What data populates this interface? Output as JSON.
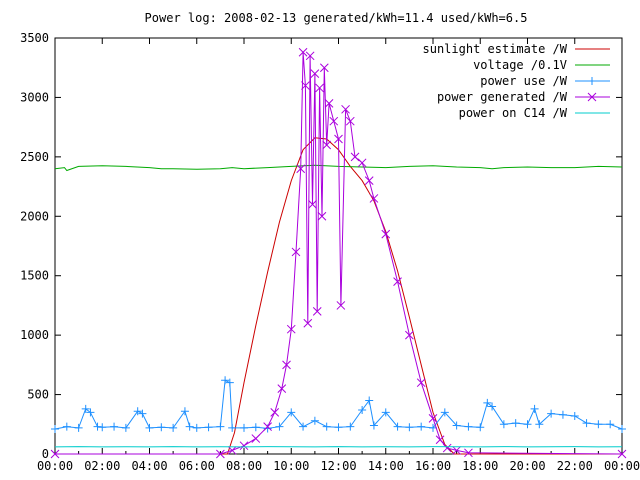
{
  "chart_data": {
    "type": "line",
    "title": "Power log: 2008-02-13 generated/kWh=11.4 used/kWh=6.5",
    "xlabel": "",
    "ylabel": "",
    "x_ticks": [
      "00:00",
      "02:00",
      "04:00",
      "06:00",
      "08:00",
      "10:00",
      "12:00",
      "14:00",
      "16:00",
      "18:00",
      "20:00",
      "22:00",
      "00:00"
    ],
    "y_ticks": [
      "0",
      "500",
      "1000",
      "1500",
      "2000",
      "2500",
      "3000",
      "3500"
    ],
    "xlim_hours": [
      0,
      24
    ],
    "ylim": [
      0,
      3500
    ],
    "grid": false,
    "legend_position": "top-right",
    "series": [
      {
        "name": "sunlight estimate /W",
        "color": "#cc0000",
        "marker": "none",
        "x_hours": [
          0,
          7.3,
          7.6,
          8.0,
          8.5,
          9.0,
          9.5,
          10.0,
          10.5,
          11.0,
          11.5,
          12.0,
          12.5,
          13.0,
          13.5,
          14.0,
          14.5,
          15.0,
          15.5,
          16.0,
          16.5,
          16.9,
          24
        ],
        "values": [
          0,
          0,
          180,
          600,
          1080,
          1530,
          1950,
          2300,
          2560,
          2660,
          2650,
          2560,
          2420,
          2300,
          2130,
          1870,
          1540,
          1150,
          750,
          350,
          80,
          0,
          0
        ]
      },
      {
        "name": "voltage /0.1V",
        "color": "#00aa00",
        "marker": "none",
        "x_hours": [
          0,
          0.4,
          0.5,
          1,
          2,
          3,
          4,
          4.5,
          5,
          6,
          7,
          7.5,
          8,
          9,
          10,
          11,
          12,
          13,
          14,
          15,
          16,
          17,
          18,
          18.5,
          19,
          20,
          21,
          22,
          23,
          24
        ],
        "values": [
          2400,
          2410,
          2385,
          2420,
          2425,
          2420,
          2410,
          2400,
          2400,
          2395,
          2400,
          2410,
          2400,
          2410,
          2420,
          2430,
          2420,
          2415,
          2410,
          2420,
          2425,
          2415,
          2410,
          2400,
          2410,
          2415,
          2410,
          2410,
          2420,
          2415
        ]
      },
      {
        "name": "power use /W",
        "color": "#1e90ff",
        "marker": "plus",
        "x_hours": [
          0.0,
          0.5,
          1.0,
          1.3,
          1.5,
          1.8,
          2.0,
          2.5,
          3.0,
          3.5,
          3.7,
          4.0,
          4.5,
          5.0,
          5.5,
          5.7,
          6.0,
          6.5,
          7.0,
          7.2,
          7.4,
          7.5,
          8.0,
          8.5,
          9.0,
          9.5,
          10.0,
          10.5,
          11.0,
          11.5,
          12.0,
          12.5,
          13.0,
          13.3,
          13.5,
          14.0,
          14.5,
          15.0,
          15.5,
          16.0,
          16.5,
          17.0,
          17.5,
          18.0,
          18.3,
          18.5,
          19.0,
          19.5,
          20.0,
          20.3,
          20.5,
          21.0,
          21.5,
          22.0,
          22.5,
          23.0,
          23.5,
          24.0
        ],
        "values": [
          210,
          230,
          220,
          380,
          350,
          230,
          225,
          230,
          220,
          360,
          340,
          220,
          225,
          220,
          360,
          230,
          220,
          225,
          230,
          620,
          600,
          220,
          220,
          225,
          215,
          230,
          350,
          230,
          280,
          230,
          225,
          230,
          370,
          450,
          240,
          350,
          230,
          225,
          230,
          220,
          350,
          240,
          230,
          225,
          430,
          400,
          250,
          260,
          250,
          380,
          250,
          340,
          330,
          320,
          260,
          250,
          250,
          210
        ]
      },
      {
        "name": "power generated /W",
        "color": "#aa00dd",
        "marker": "x",
        "x_hours": [
          0,
          7.0,
          7.5,
          8.0,
          8.5,
          9.0,
          9.3,
          9.6,
          9.8,
          10.0,
          10.2,
          10.4,
          10.5,
          10.6,
          10.7,
          10.8,
          10.9,
          11.0,
          11.1,
          11.2,
          11.3,
          11.4,
          11.5,
          11.6,
          11.8,
          12.0,
          12.1,
          12.3,
          12.5,
          12.7,
          13.0,
          13.3,
          13.5,
          14.0,
          14.5,
          15.0,
          15.5,
          16.0,
          16.3,
          16.6,
          17.0,
          17.5,
          24
        ],
        "values": [
          0,
          0,
          30,
          70,
          130,
          230,
          350,
          550,
          750,
          1050,
          1700,
          2400,
          3380,
          3100,
          1100,
          3350,
          2100,
          3200,
          1200,
          3080,
          2000,
          3250,
          2600,
          2950,
          2800,
          2650,
          1250,
          2900,
          2800,
          2500,
          2450,
          2300,
          2150,
          1850,
          1450,
          1000,
          600,
          300,
          120,
          50,
          30,
          10,
          0
        ]
      },
      {
        "name": "power on C14 /W",
        "color": "#00cccc",
        "marker": "none",
        "x_hours": [
          0,
          1,
          2,
          3,
          4,
          5,
          6,
          7,
          8,
          9,
          10,
          11,
          12,
          13,
          14,
          15,
          16,
          17,
          18,
          19,
          20,
          21,
          22,
          23,
          24
        ],
        "values": [
          60,
          62,
          60,
          61,
          60,
          62,
          60,
          61,
          60,
          62,
          61,
          60,
          62,
          60,
          61,
          60,
          62,
          61,
          60,
          62,
          60,
          61,
          62,
          60,
          61
        ]
      }
    ]
  }
}
